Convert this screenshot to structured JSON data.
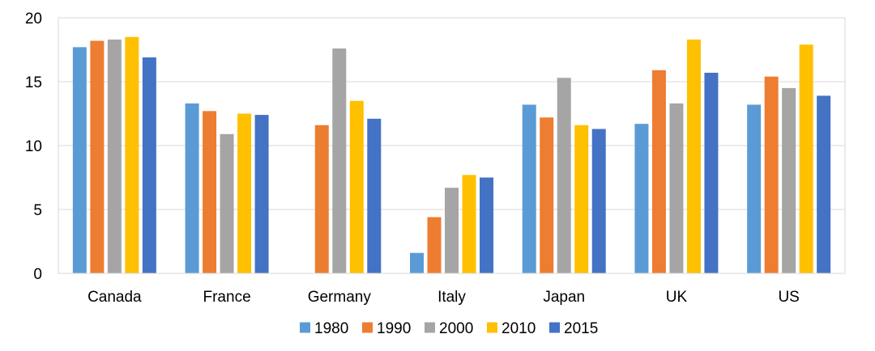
{
  "chart_data": {
    "type": "bar",
    "categories": [
      "Canada",
      "France",
      "Germany",
      "Italy",
      "Japan",
      "UK",
      "US"
    ],
    "series": [
      {
        "name": "1980",
        "color": "#5B9BD5",
        "values": [
          17.7,
          13.3,
          null,
          1.6,
          13.2,
          11.7,
          13.2
        ]
      },
      {
        "name": "1990",
        "color": "#ED7D31",
        "values": [
          18.2,
          12.7,
          11.6,
          4.4,
          12.2,
          15.9,
          15.4
        ]
      },
      {
        "name": "2000",
        "color": "#A5A5A5",
        "values": [
          18.3,
          10.9,
          17.6,
          6.7,
          15.3,
          13.3,
          14.5
        ]
      },
      {
        "name": "2010",
        "color": "#FFC000",
        "values": [
          18.5,
          12.5,
          13.5,
          7.7,
          11.6,
          18.3,
          17.9
        ]
      },
      {
        "name": "2015",
        "color": "#4472C4",
        "values": [
          16.9,
          12.4,
          12.1,
          7.5,
          11.3,
          15.7,
          13.9
        ]
      }
    ],
    "y_ticks": [
      "0",
      "5",
      "10",
      "15",
      "20"
    ],
    "ylim": [
      0,
      20
    ],
    "grid": true,
    "legend_position": "bottom"
  }
}
